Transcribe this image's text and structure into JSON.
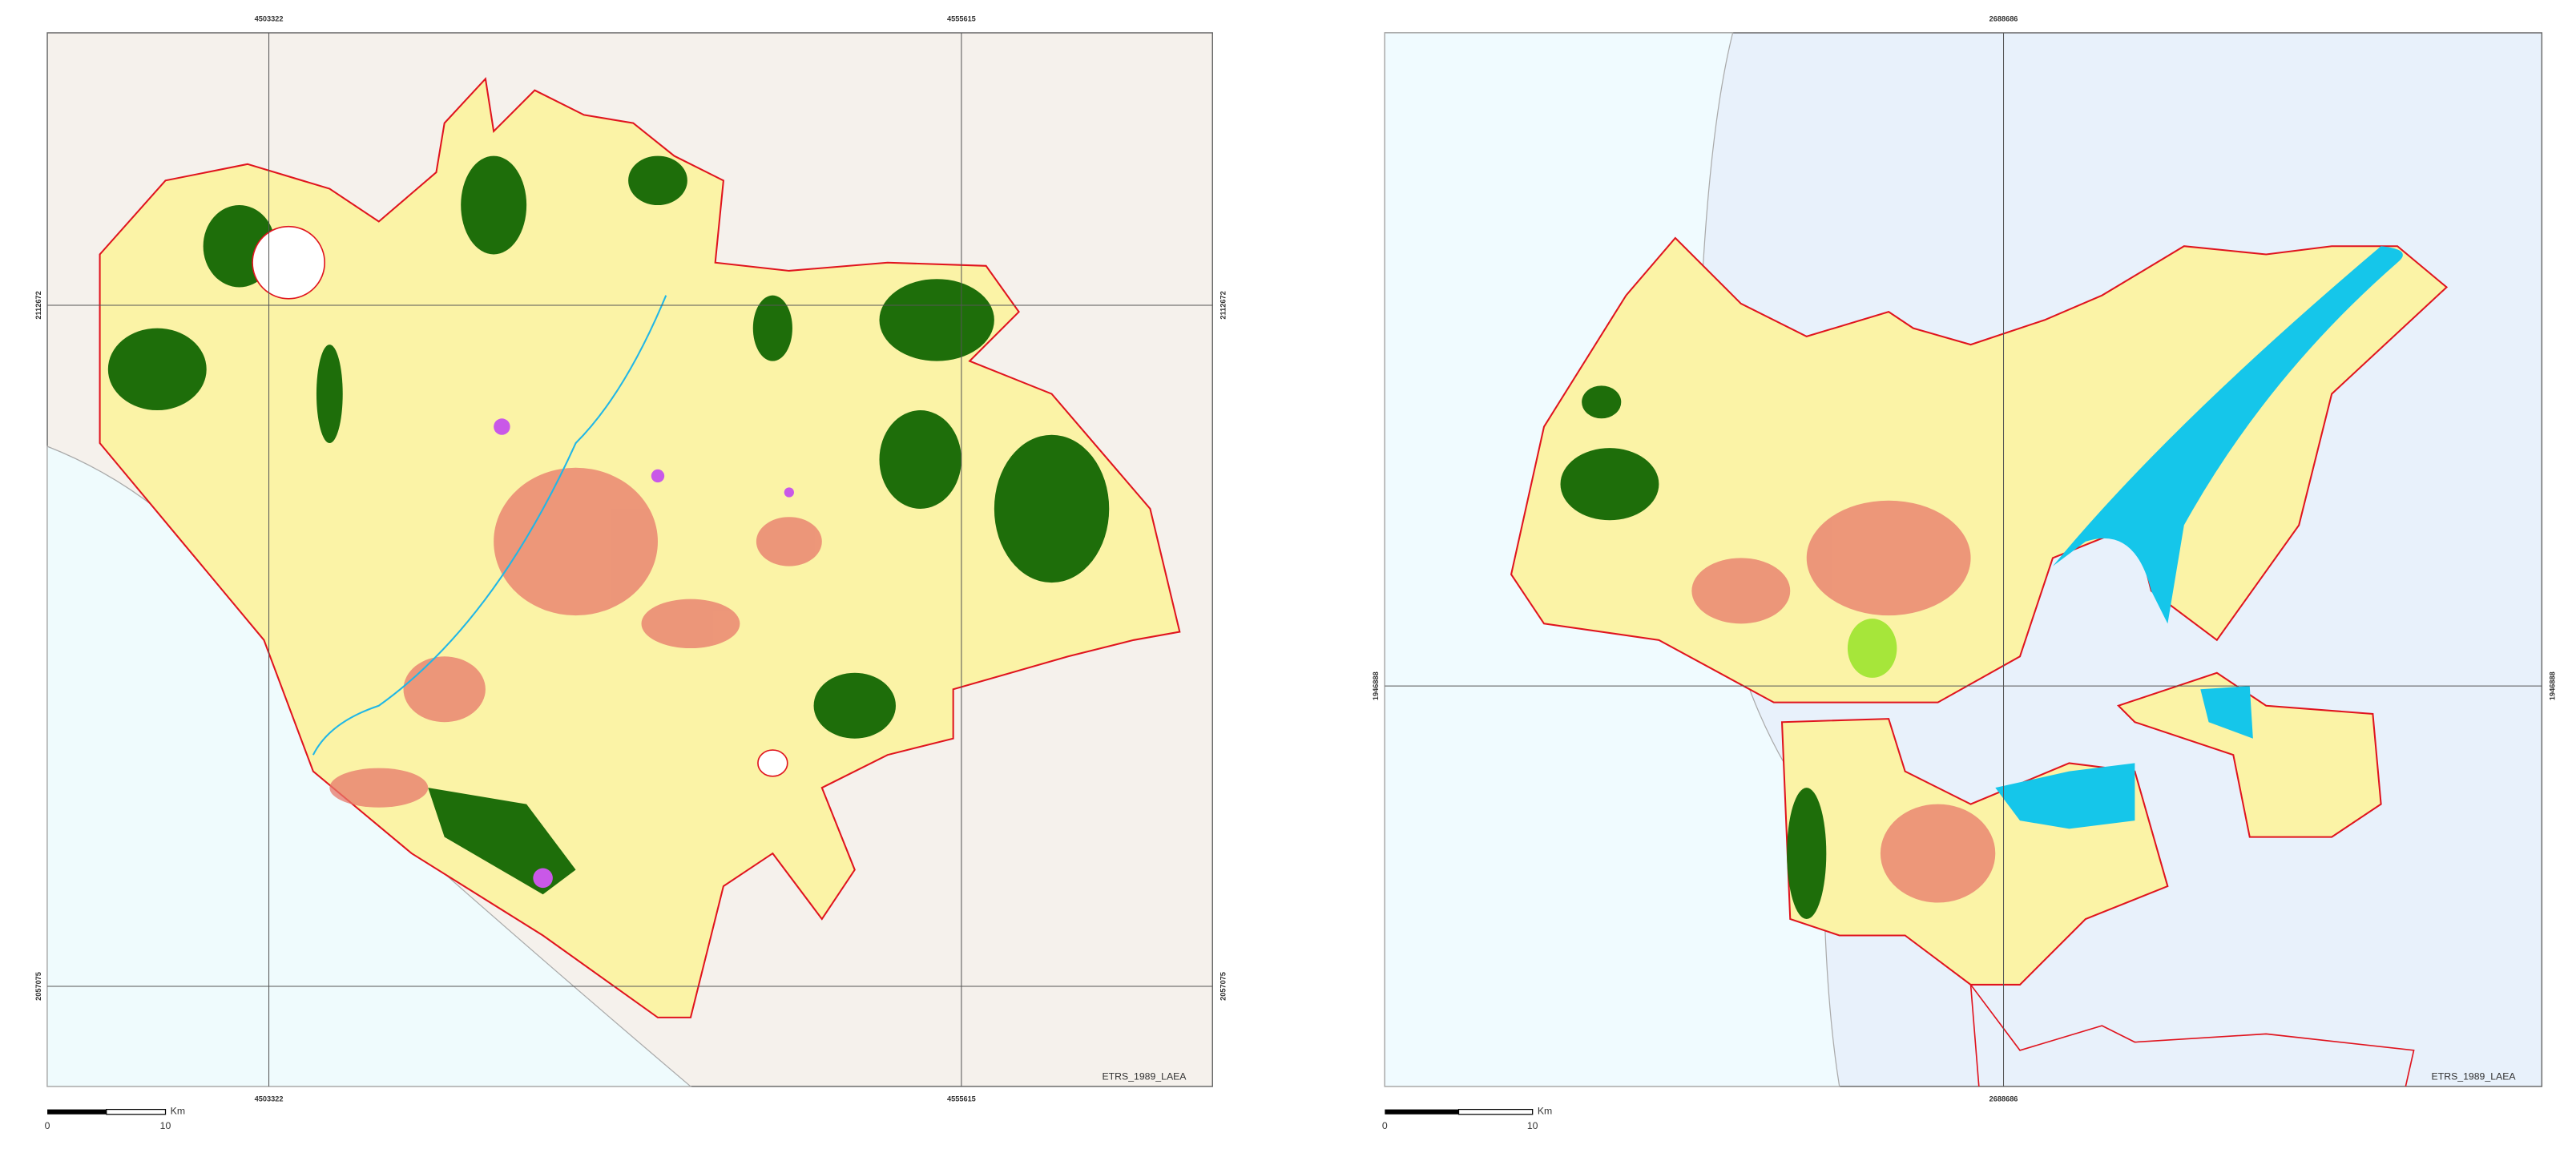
{
  "maps": [
    {
      "grid_labels": {
        "top": [
          "4503322",
          "4555615"
        ],
        "bottom": [
          "4503322",
          "4555615"
        ],
        "left": [
          "2112672",
          "2057075"
        ],
        "right": [
          "2112672",
          "2057075"
        ]
      },
      "projection": "ETRS_1989_LAEA",
      "scale_bar": {
        "unit": "Km",
        "labels": [
          "0",
          "10"
        ]
      }
    },
    {
      "grid_labels": {
        "top": [
          "2688686"
        ],
        "bottom": [
          "2688686"
        ],
        "left": [
          "1946888"
        ],
        "right": [
          "1946888"
        ]
      },
      "projection": "ETRS_1989_LAEA",
      "scale_bar": {
        "unit": "Km",
        "labels": [
          "0",
          "10"
        ]
      }
    }
  ]
}
